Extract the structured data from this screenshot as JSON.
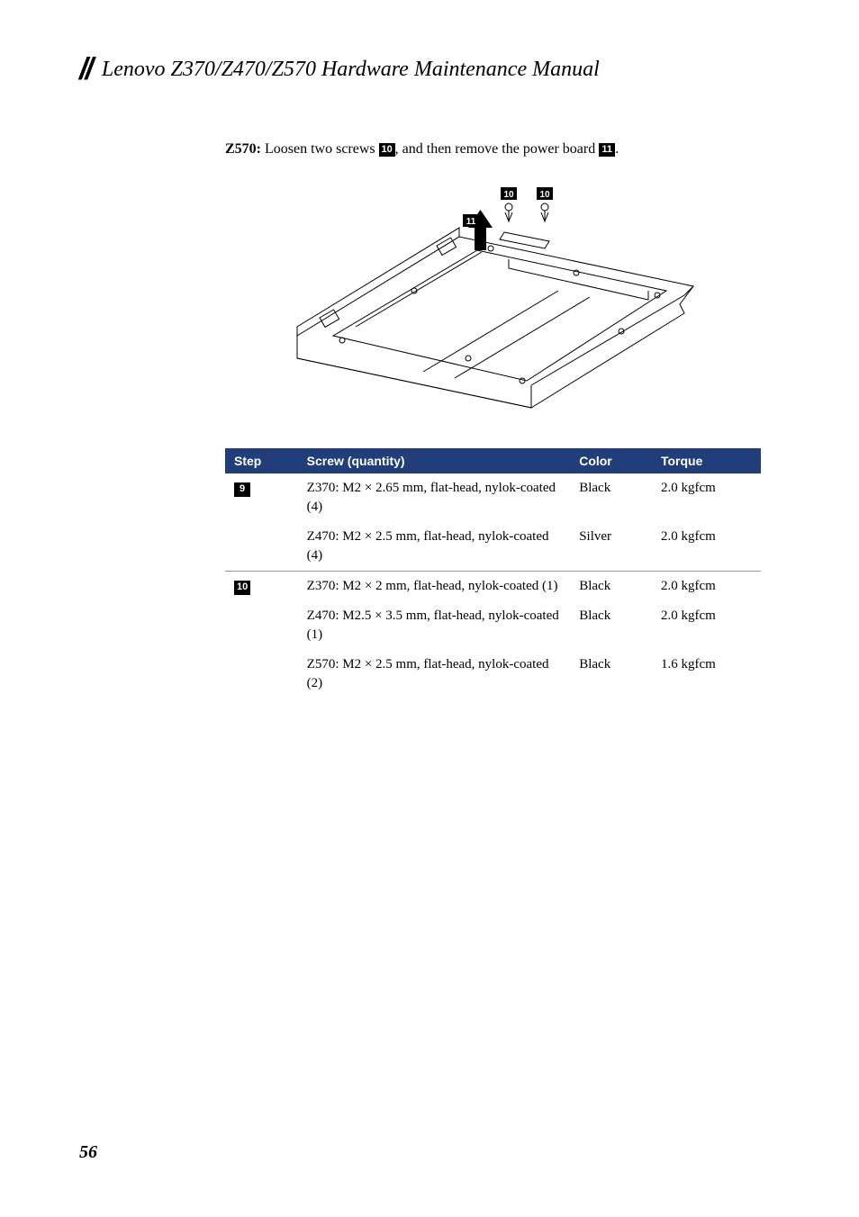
{
  "header": {
    "title": "Lenovo Z370/Z470/Z570 Hardware Maintenance Manual"
  },
  "instruction": {
    "prefix": "Z570:",
    "text_before": " Loosen two screws ",
    "badge1": "10",
    "text_middle": ", and then remove the power board ",
    "badge2": "11",
    "text_after": "."
  },
  "diagram": {
    "badges": [
      "10",
      "10",
      "11"
    ]
  },
  "table": {
    "headers": {
      "step": "Step",
      "screw": "Screw (quantity)",
      "color": "Color",
      "torque": "Torque"
    },
    "rows": [
      {
        "badge": "9",
        "screw": "Z370: M2 × 2.65 mm, flat-head, nylok-coated (4)",
        "color": "Black",
        "torque": "2.0 kgfcm",
        "sep": false
      },
      {
        "badge": "",
        "screw": "Z470: M2 × 2.5 mm, flat-head, nylok-coated (4)",
        "color": "Silver",
        "torque": "2.0 kgfcm",
        "sep": false
      },
      {
        "badge": "10",
        "screw": "Z370: M2 × 2 mm, flat-head, nylok-coated (1)",
        "color": "Black",
        "torque": "2.0 kgfcm",
        "sep": true
      },
      {
        "badge": "",
        "screw": "Z470: M2.5 × 3.5 mm, flat-head, nylok-coated (1)",
        "color": "Black",
        "torque": "2.0 kgfcm",
        "sep": false
      },
      {
        "badge": "",
        "screw": "Z570: M2 × 2.5 mm, flat-head, nylok-coated (2)",
        "color": "Black",
        "torque": "1.6 kgfcm",
        "sep": false
      }
    ]
  },
  "page_number": "56",
  "colors": {
    "header_bg": "#223e7a",
    "header_fg": "#ffffff",
    "badge_bg": "#000000",
    "badge_fg": "#ffffff",
    "text": "#000000",
    "border": "#999999"
  }
}
